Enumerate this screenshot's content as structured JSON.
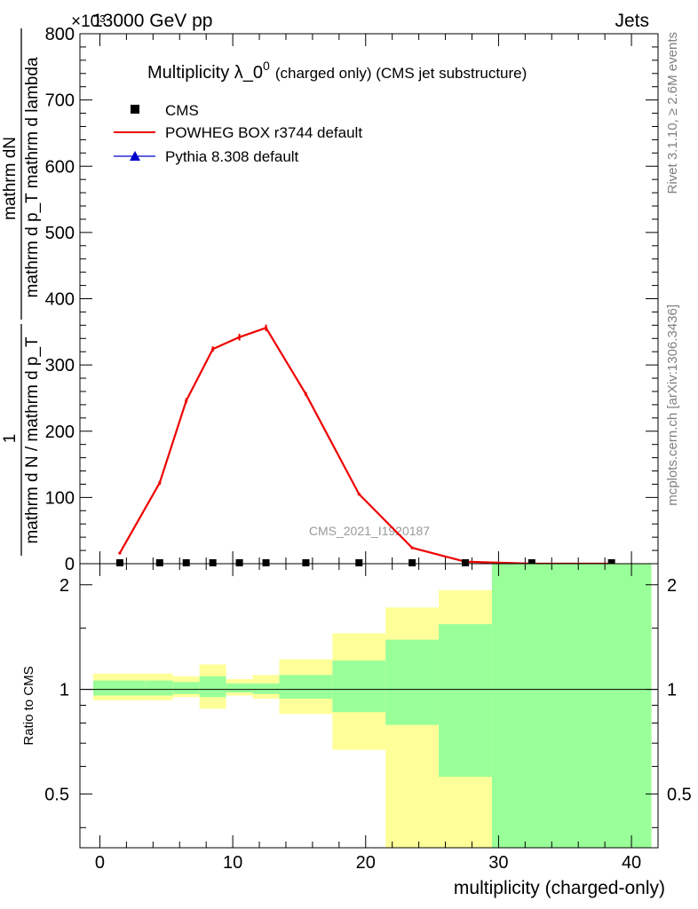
{
  "header": {
    "left": "13000 GeV pp",
    "right": "Jets",
    "exponent": "×10³"
  },
  "side_labels": {
    "rivet": "Rivet 3.1.10, ≥ 2.6M events",
    "mcplots": "mcplots.cern.ch [arXiv:1306.3436]"
  },
  "watermark": "CMS_2021_I1920187",
  "chart_data": [
    {
      "type": "line",
      "title_main": "Multiplicity λ_0",
      "title_sup": "0",
      "title_note": "(charged only) (CMS jet substructure)",
      "ylabel_num": "mathrm dN",
      "ylabel_den": "mathrm d p_T mathrm d lambda",
      "ylabel_num2": "1",
      "ylabel_den2": "mathrm d N / mathrm d p_T",
      "xlim": [
        -1.5,
        42
      ],
      "ylim": [
        0,
        800
      ],
      "yticks": [
        0,
        100,
        200,
        300,
        400,
        500,
        600,
        700,
        800
      ],
      "legend_position": "top-left",
      "series": [
        {
          "name": "CMS",
          "marker": "square",
          "color": "#000000",
          "x": [
            1.5,
            4.5,
            6.5,
            8.5,
            10.5,
            12.5,
            15.5,
            19.5,
            23.5,
            27.5,
            32.5,
            38.5
          ],
          "y": [
            0,
            0,
            0,
            0,
            0,
            0,
            0,
            0,
            0,
            0,
            0,
            0
          ]
        },
        {
          "name": "POWHEG BOX r3744 default",
          "marker": "line",
          "color": "#ee0000",
          "x": [
            1.5,
            4.5,
            6.5,
            8.5,
            10.5,
            12.5,
            15.5,
            19.5,
            23.5,
            27.5,
            32.5,
            38.5
          ],
          "y": [
            16,
            122,
            246,
            324,
            342,
            356,
            256,
            105,
            24,
            3,
            0,
            0
          ],
          "err": [
            2,
            3,
            4,
            4,
            5,
            5,
            3,
            2,
            1,
            0.5,
            0,
            0
          ]
        },
        {
          "name": "Pythia 8.308 default",
          "marker": "triangle",
          "color": "#0000cc",
          "x": [],
          "y": []
        }
      ]
    },
    {
      "type": "area",
      "ylabel": "Ratio to CMS",
      "xlabel": "multiplicity (charged-only)",
      "xlim": [
        -1.5,
        42
      ],
      "ylim": [
        0.35,
        2.3
      ],
      "log_y": true,
      "yticks": [
        0.5,
        1,
        2
      ],
      "xticks": [
        0,
        10,
        20,
        30,
        40
      ],
      "reference": 1,
      "bins": [
        {
          "lo": -0.5,
          "hi": 3.5,
          "inner": [
            0.96,
            1.06
          ],
          "outer": [
            0.93,
            1.11
          ]
        },
        {
          "lo": 3.5,
          "hi": 5.5,
          "inner": [
            0.96,
            1.06
          ],
          "outer": [
            0.93,
            1.11
          ]
        },
        {
          "lo": 5.5,
          "hi": 7.5,
          "inner": [
            0.97,
            1.05
          ],
          "outer": [
            0.95,
            1.09
          ]
        },
        {
          "lo": 7.5,
          "hi": 9.5,
          "inner": [
            0.95,
            1.09
          ],
          "outer": [
            0.88,
            1.18
          ]
        },
        {
          "lo": 9.5,
          "hi": 11.5,
          "inner": [
            0.98,
            1.04
          ],
          "outer": [
            0.96,
            1.07
          ]
        },
        {
          "lo": 11.5,
          "hi": 13.5,
          "inner": [
            0.97,
            1.04
          ],
          "outer": [
            0.94,
            1.1
          ]
        },
        {
          "lo": 13.5,
          "hi": 17.5,
          "inner": [
            0.94,
            1.1
          ],
          "outer": [
            0.85,
            1.22
          ]
        },
        {
          "lo": 17.5,
          "hi": 21.5,
          "inner": [
            0.86,
            1.21
          ],
          "outer": [
            0.67,
            1.45
          ]
        },
        {
          "lo": 21.5,
          "hi": 25.5,
          "inner": [
            0.79,
            1.39
          ],
          "outer": [
            0.35,
            1.72
          ]
        },
        {
          "lo": 25.5,
          "hi": 29.5,
          "inner": [
            0.56,
            1.54
          ],
          "outer": [
            0.35,
            1.93
          ]
        },
        {
          "lo": 29.5,
          "hi": 41.5,
          "inner": [
            0.35,
            2.3
          ],
          "outer": [
            0.35,
            2.3
          ]
        }
      ]
    }
  ]
}
